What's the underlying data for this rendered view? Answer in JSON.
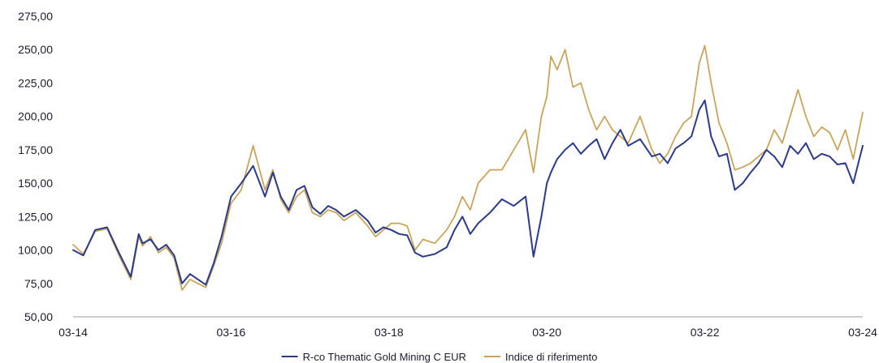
{
  "chart_data": {
    "type": "line",
    "title": "",
    "xlabel": "",
    "ylabel": "",
    "ylim": [
      50,
      275
    ],
    "y_ticks": [
      "275,00",
      "250,00",
      "225,00",
      "200,00",
      "175,00",
      "150,00",
      "125,00",
      "100,00",
      "75,00",
      "50,00"
    ],
    "y_tick_values": [
      275,
      250,
      225,
      200,
      175,
      150,
      125,
      100,
      75,
      50
    ],
    "x_ticks": [
      "03-14",
      "03-16",
      "03-18",
      "03-20",
      "03-22",
      "03-24"
    ],
    "x_tick_values": [
      2014.17,
      2016.17,
      2018.17,
      2020.17,
      2022.17,
      2024.17
    ],
    "xlim": [
      2014.17,
      2024.17
    ],
    "grid": false,
    "legend_position": "bottom-center",
    "series": [
      {
        "name": "R-co Thematic Gold Mining C EUR",
        "color": "#2b3a8a",
        "x": [
          2014.17,
          2014.3,
          2014.45,
          2014.6,
          2014.75,
          2014.9,
          2015.0,
          2015.05,
          2015.15,
          2015.25,
          2015.35,
          2015.45,
          2015.55,
          2015.65,
          2015.75,
          2015.85,
          2015.95,
          2016.05,
          2016.17,
          2016.3,
          2016.45,
          2016.6,
          2016.7,
          2016.8,
          2016.9,
          2017.0,
          2017.1,
          2017.2,
          2017.3,
          2017.4,
          2017.5,
          2017.6,
          2017.75,
          2017.9,
          2018.0,
          2018.1,
          2018.2,
          2018.3,
          2018.4,
          2018.5,
          2018.6,
          2018.75,
          2018.9,
          2019.0,
          2019.1,
          2019.2,
          2019.3,
          2019.45,
          2019.6,
          2019.75,
          2019.9,
          2020.0,
          2020.1,
          2020.17,
          2020.22,
          2020.3,
          2020.4,
          2020.5,
          2020.6,
          2020.7,
          2020.8,
          2020.9,
          2021.0,
          2021.1,
          2021.2,
          2021.35,
          2021.5,
          2021.6,
          2021.7,
          2021.8,
          2021.9,
          2022.0,
          2022.1,
          2022.17,
          2022.25,
          2022.35,
          2022.45,
          2022.55,
          2022.65,
          2022.75,
          2022.85,
          2022.95,
          2023.05,
          2023.15,
          2023.25,
          2023.35,
          2023.45,
          2023.55,
          2023.65,
          2023.75,
          2023.85,
          2023.95,
          2024.05,
          2024.17
        ],
        "values": [
          100,
          96,
          115,
          117,
          98,
          80,
          112,
          105,
          108,
          100,
          104,
          96,
          75,
          82,
          78,
          74,
          90,
          110,
          140,
          150,
          163,
          140,
          158,
          140,
          130,
          145,
          148,
          132,
          127,
          133,
          130,
          125,
          130,
          122,
          113,
          117,
          115,
          112,
          111,
          98,
          95,
          97,
          102,
          115,
          125,
          112,
          120,
          128,
          138,
          133,
          140,
          95,
          125,
          150,
          158,
          168,
          175,
          180,
          172,
          178,
          183,
          168,
          180,
          190,
          178,
          183,
          170,
          172,
          165,
          176,
          180,
          185,
          205,
          212,
          185,
          170,
          172,
          145,
          150,
          158,
          165,
          175,
          170,
          162,
          178,
          172,
          180,
          168,
          172,
          170,
          164,
          165,
          150,
          178
        ]
      },
      {
        "name": "Indice di riferimento",
        "color": "#c9a55c",
        "x": [
          2014.17,
          2014.3,
          2014.45,
          2014.6,
          2014.75,
          2014.9,
          2015.0,
          2015.05,
          2015.15,
          2015.25,
          2015.35,
          2015.45,
          2015.55,
          2015.65,
          2015.75,
          2015.85,
          2015.95,
          2016.05,
          2016.17,
          2016.3,
          2016.45,
          2016.6,
          2016.7,
          2016.8,
          2016.9,
          2017.0,
          2017.1,
          2017.2,
          2017.3,
          2017.4,
          2017.5,
          2017.6,
          2017.75,
          2017.9,
          2018.0,
          2018.1,
          2018.2,
          2018.3,
          2018.4,
          2018.5,
          2018.6,
          2018.75,
          2018.9,
          2019.0,
          2019.1,
          2019.2,
          2019.3,
          2019.45,
          2019.6,
          2019.75,
          2019.9,
          2020.0,
          2020.1,
          2020.17,
          2020.22,
          2020.3,
          2020.4,
          2020.5,
          2020.6,
          2020.7,
          2020.8,
          2020.9,
          2021.0,
          2021.1,
          2021.2,
          2021.35,
          2021.5,
          2021.6,
          2021.7,
          2021.8,
          2021.9,
          2022.0,
          2022.1,
          2022.17,
          2022.25,
          2022.35,
          2022.45,
          2022.55,
          2022.65,
          2022.75,
          2022.85,
          2022.95,
          2023.05,
          2023.15,
          2023.25,
          2023.35,
          2023.45,
          2023.55,
          2023.65,
          2023.75,
          2023.85,
          2023.95,
          2024.05,
          2024.17
        ],
        "values": [
          104,
          97,
          114,
          116,
          96,
          78,
          110,
          103,
          110,
          98,
          102,
          94,
          70,
          78,
          75,
          72,
          88,
          105,
          135,
          145,
          178,
          145,
          160,
          138,
          128,
          140,
          145,
          128,
          125,
          130,
          128,
          122,
          128,
          118,
          110,
          115,
          120,
          120,
          118,
          100,
          108,
          105,
          115,
          125,
          140,
          130,
          150,
          160,
          160,
          175,
          190,
          158,
          200,
          215,
          245,
          235,
          250,
          222,
          225,
          205,
          190,
          200,
          190,
          185,
          180,
          200,
          175,
          165,
          172,
          185,
          195,
          200,
          240,
          253,
          225,
          195,
          180,
          160,
          162,
          165,
          170,
          175,
          190,
          180,
          200,
          220,
          200,
          185,
          192,
          188,
          175,
          190,
          168,
          203
        ]
      }
    ]
  }
}
